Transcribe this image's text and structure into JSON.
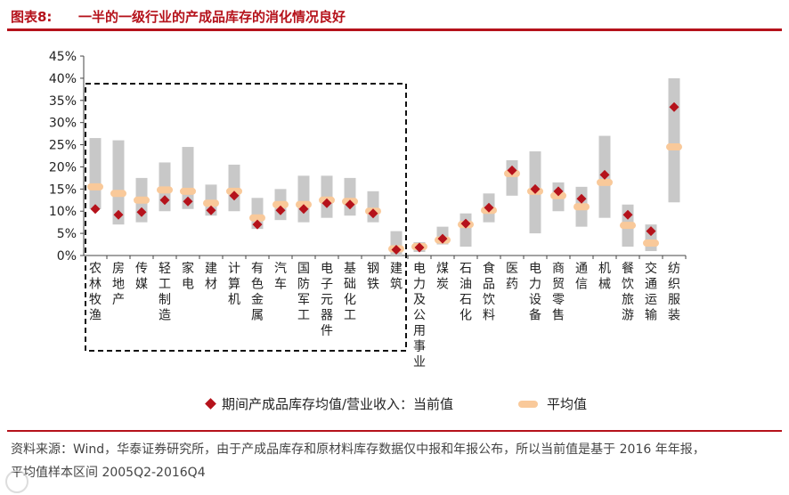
{
  "header": {
    "fig_label": "图表8:",
    "fig_title": "一半的一级行业的产成品库存的消化情况良好"
  },
  "chart_data": {
    "type": "range-bar-with-markers",
    "y_tick_labels": [
      "45%",
      "40%",
      "35%",
      "30%",
      "25%",
      "20%",
      "15%",
      "10%",
      "5%",
      "0%"
    ],
    "ylim": [
      0,
      45
    ],
    "categories": [
      {
        "label": "农林牧渔",
        "low": 10.5,
        "high": 26.5,
        "current": 10.5,
        "avg": 15.5
      },
      {
        "label": "房地产",
        "low": 7.0,
        "high": 26.0,
        "current": 9.2,
        "avg": 14.0
      },
      {
        "label": "传媒",
        "low": 7.5,
        "high": 17.5,
        "current": 9.8,
        "avg": 12.5
      },
      {
        "label": "轻工制造",
        "low": 10.0,
        "high": 21.0,
        "current": 12.5,
        "avg": 14.8
      },
      {
        "label": "家电",
        "low": 10.5,
        "high": 24.5,
        "current": 12.2,
        "avg": 14.5
      },
      {
        "label": "建材",
        "low": 9.0,
        "high": 16.0,
        "current": 10.2,
        "avg": 11.8
      },
      {
        "label": "计算机",
        "low": 10.0,
        "high": 20.5,
        "current": 13.5,
        "avg": 14.5
      },
      {
        "label": "有色金属",
        "low": 6.0,
        "high": 13.0,
        "current": 7.0,
        "avg": 8.5
      },
      {
        "label": "汽车",
        "low": 8.0,
        "high": 15.0,
        "current": 10.2,
        "avg": 11.5
      },
      {
        "label": "国防军工",
        "low": 7.5,
        "high": 18.0,
        "current": 10.5,
        "avg": 11.5
      },
      {
        "label": "电子元器件",
        "low": 8.5,
        "high": 18.0,
        "current": 11.8,
        "avg": 12.5
      },
      {
        "label": "基础化工",
        "low": 9.0,
        "high": 17.5,
        "current": 11.5,
        "avg": 12.2
      },
      {
        "label": "钢铁",
        "low": 7.5,
        "high": 14.5,
        "current": 9.5,
        "avg": 10.0
      },
      {
        "label": "建筑",
        "low": 0.0,
        "high": 5.5,
        "current": 1.3,
        "avg": 1.5
      },
      {
        "label": "电力及公用事业",
        "low": 0.8,
        "high": 3.0,
        "current": 1.8,
        "avg": 2.0
      },
      {
        "label": "煤炭",
        "low": 2.5,
        "high": 6.5,
        "current": 3.8,
        "avg": 3.5
      },
      {
        "label": "石油石化",
        "low": 2.0,
        "high": 9.5,
        "current": 7.2,
        "avg": 7.0
      },
      {
        "label": "食品饮料",
        "low": 7.5,
        "high": 14.0,
        "current": 10.8,
        "avg": 10.2
      },
      {
        "label": "医药",
        "low": 13.5,
        "high": 21.5,
        "current": 19.2,
        "avg": 18.5
      },
      {
        "label": "电力设备",
        "low": 5.0,
        "high": 23.5,
        "current": 15.0,
        "avg": 14.5
      },
      {
        "label": "商贸零售",
        "low": 10.0,
        "high": 16.5,
        "current": 14.5,
        "avg": 13.5
      },
      {
        "label": "通信",
        "low": 6.5,
        "high": 15.5,
        "current": 12.8,
        "avg": 11.0
      },
      {
        "label": "机械",
        "low": 8.5,
        "high": 27.0,
        "current": 18.2,
        "avg": 16.5
      },
      {
        "label": "餐饮旅游",
        "low": 2.0,
        "high": 11.5,
        "current": 9.2,
        "avg": 6.8
      },
      {
        "label": "交通运输",
        "low": 1.0,
        "high": 7.0,
        "current": 5.5,
        "avg": 2.8
      },
      {
        "label": "纺织服装",
        "low": 12.0,
        "high": 40.0,
        "current": 33.5,
        "avg": 24.5
      }
    ],
    "highlight_box": {
      "from_category": 0,
      "to_category": 13,
      "style": "dashed"
    },
    "colors": {
      "range": "#c8c8c8",
      "current": "#b5121b",
      "avg": "#f9c99a",
      "box": "#111111"
    }
  },
  "legend": {
    "current_label": "期间产成品库存均值/营业收入：当前值",
    "avg_label": "平均值"
  },
  "footer": {
    "source_line1": "资料来源：Wind，华泰证券研究所，由于产成品库存和原材料库存数据仅中报和年报公布，所以当前值是基于 2016 年年报，",
    "source_line2": "平均值样本区间 2005Q2-2016Q4"
  }
}
